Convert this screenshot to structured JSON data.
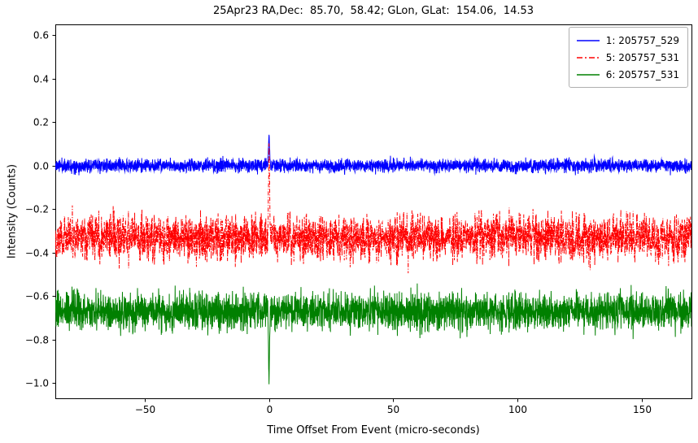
{
  "chart_data": {
    "type": "line",
    "title": "25Apr23 RA,Dec:  85.70,  58.42; GLon, GLat:  154.06,  14.53",
    "xlabel": "Time Offset From Event (micro-seconds)",
    "ylabel": "Intensity (Counts)",
    "xlim": [
      -86,
      170
    ],
    "ylim": [
      -1.07,
      0.65
    ],
    "xticks": [
      -50,
      0,
      50,
      100,
      150
    ],
    "yticks": [
      -1.0,
      -0.8,
      -0.6,
      -0.4,
      -0.2,
      0.0,
      0.2,
      0.4,
      0.6
    ],
    "grid": false,
    "legend_position": "upper right",
    "n_points": 3584,
    "series": [
      {
        "label": "1: 205757_529",
        "color": "#0000ff",
        "style": "solid",
        "baseline": 0.0,
        "noise_std": 0.015,
        "spike": {
          "x": 0,
          "peak": 0.15,
          "width": 0.5
        },
        "seed": 11
      },
      {
        "label": "5: 205757_531",
        "color": "#ff0000",
        "style": "dash-dot",
        "baseline": -0.33,
        "noise_std": 0.05,
        "spike": {
          "x": 0,
          "peak": 0.1,
          "width": 0.5
        },
        "seed": 22
      },
      {
        "label": "6: 205757_531",
        "color": "#008000",
        "style": "solid",
        "baseline": -0.67,
        "noise_std": 0.042,
        "spike": {
          "x": 0,
          "peak": -0.99,
          "width": 0.5
        },
        "seed": 33
      }
    ]
  }
}
